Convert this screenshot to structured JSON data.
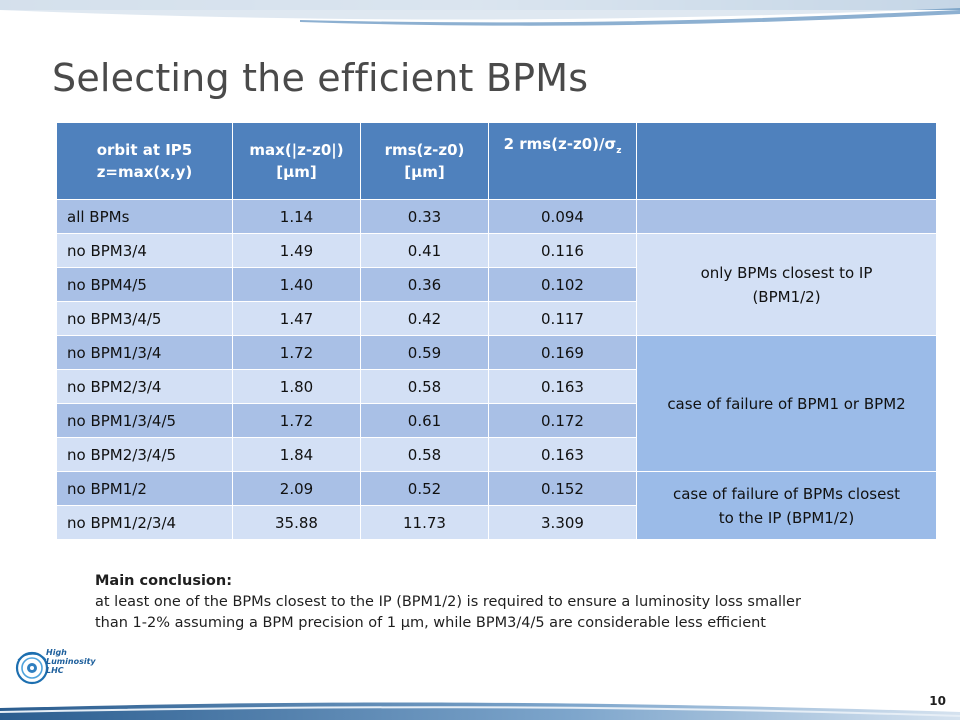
{
  "slide": {
    "title": "Selecting the efficient BPMs",
    "page_number": "10"
  },
  "table": {
    "headers": [
      [
        "orbit at IP5",
        "z=max(x,y)"
      ],
      [
        "max(|z-z0|)",
        "[µm]"
      ],
      [
        "rms(z-z0)",
        "[µm]"
      ],
      [
        "2 rms(z-z0)/σ",
        "z"
      ],
      [
        ""
      ]
    ],
    "rows": [
      [
        "all BPMs",
        "1.14",
        "0.33",
        "0.094"
      ],
      [
        "no BPM3/4",
        "1.49",
        "0.41",
        "0.116"
      ],
      [
        "no BPM4/5",
        "1.40",
        "0.36",
        "0.102"
      ],
      [
        "no BPM3/4/5",
        "1.47",
        "0.42",
        "0.117"
      ],
      [
        "no BPM1/3/4",
        "1.72",
        "0.59",
        "0.169"
      ],
      [
        "no BPM2/3/4",
        "1.80",
        "0.58",
        "0.163"
      ],
      [
        "no BPM1/3/4/5",
        "1.72",
        "0.61",
        "0.172"
      ],
      [
        "no BPM2/3/4/5",
        "1.84",
        "0.58",
        "0.163"
      ],
      [
        "no BPM1/2",
        "2.09",
        "0.52",
        "0.152"
      ],
      [
        "no BPM1/2/3/4",
        "35.88",
        "11.73",
        "3.309"
      ]
    ],
    "notes": [
      [
        "only BPMs closest to IP",
        "(BPM1/2)"
      ],
      [
        "case of failure of BPM1 or BPM2"
      ],
      [
        "case of failure of BPMs closest",
        "to the IP (BPM1/2)"
      ]
    ]
  },
  "conclusion": {
    "heading": "Main conclusion:",
    "lines": [
      "at least one of the BPMs closest to the IP (BPM1/2) is required to ensure a luminosity loss smaller",
      "than 1-2% assuming a BPM precision of 1 µm, while BPM3/4/5 are considerable less efficient"
    ]
  },
  "logo": {
    "text": [
      "High",
      "Luminosity",
      "LHC"
    ]
  },
  "colors": {
    "header": "#4f81bd",
    "row_dark": "#a9c0e6",
    "row_light": "#d3e0f5",
    "title": "#4a4a4a"
  }
}
